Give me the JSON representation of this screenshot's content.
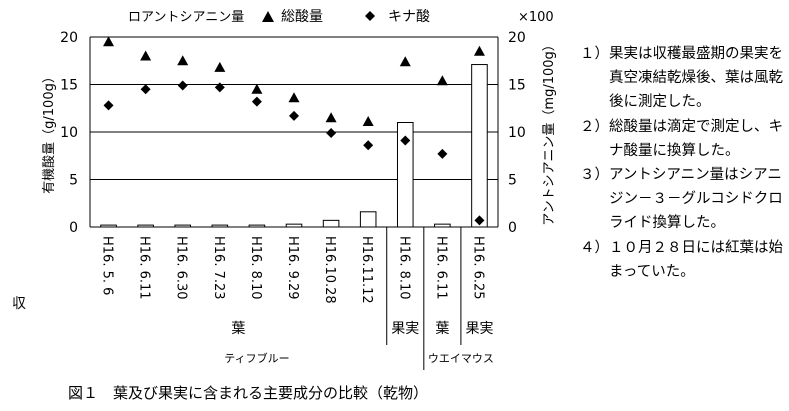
{
  "chart_data": {
    "type": "bar+scatter",
    "legend": [
      {
        "label": "ロアントシアニン量",
        "marker": "open-square"
      },
      {
        "label": "総酸量",
        "marker": "triangle"
      },
      {
        "label": "キナ酸",
        "marker": "diamond"
      }
    ],
    "categories": [
      "H16. 5. 6",
      "H16. 6.11",
      "H16. 6.30",
      "H16. 7.23",
      "H16. 8.10",
      "H16. 9.29",
      "H16.10.28",
      "H16.11.12",
      "H16. 8.10",
      "H16. 6.11",
      "H16. 6.25"
    ],
    "groups": [
      {
        "part": "葉",
        "from": 0,
        "to": 7
      },
      {
        "part": "果実",
        "from": 8,
        "to": 8
      },
      {
        "part": "葉",
        "from": 9,
        "to": 9
      },
      {
        "part": "果実",
        "from": 10,
        "to": 10
      }
    ],
    "varieties": [
      {
        "name": "ティフブルー",
        "from": 0,
        "to": 8
      },
      {
        "name": "ウエイマウス",
        "from": 9,
        "to": 10
      }
    ],
    "series": [
      {
        "name": "総酸量",
        "axis": "left",
        "values": [
          19.5,
          18.0,
          17.5,
          16.8,
          14.5,
          13.6,
          11.5,
          11.1,
          17.4,
          15.4,
          18.5
        ]
      },
      {
        "name": "キナ酸",
        "axis": "left",
        "values": [
          12.8,
          14.5,
          14.9,
          14.7,
          13.2,
          11.7,
          9.9,
          8.6,
          9.1,
          7.7,
          0.7
        ]
      },
      {
        "name": "アントシアニン量",
        "axis": "right",
        "values": [
          0.2,
          0.2,
          0.2,
          0.2,
          0.2,
          0.3,
          0.7,
          1.6,
          11.0,
          0.3,
          17.1
        ]
      }
    ],
    "ylabel": "有機酸量（g/100g）",
    "y2label": "アントシアニン量（mg/100g）",
    "y2_multiplier": "×100",
    "ylim": [
      0,
      20
    ],
    "y2lim": [
      0,
      20
    ],
    "yticks": [
      0,
      5,
      10,
      15,
      20
    ],
    "grid": true,
    "legend_position": "top"
  },
  "stray_label": "収",
  "notes": [
    {
      "num": "１）",
      "text": "果実は収穫最盛期の果実を真空凍結乾燥後、葉は風乾後に測定した。"
    },
    {
      "num": "２）",
      "text": "総酸量は滴定で測定し、キナ酸量に換算した。"
    },
    {
      "num": "３）",
      "text": "アントシアニン量はシアニジン－３－グルコシドクロライド換算した。"
    },
    {
      "num": "４）",
      "text": "１０月２８日には紅葉は始まっていた。"
    }
  ],
  "caption": "図１　葉及び果実に含まれる主要成分の比較（乾物）"
}
